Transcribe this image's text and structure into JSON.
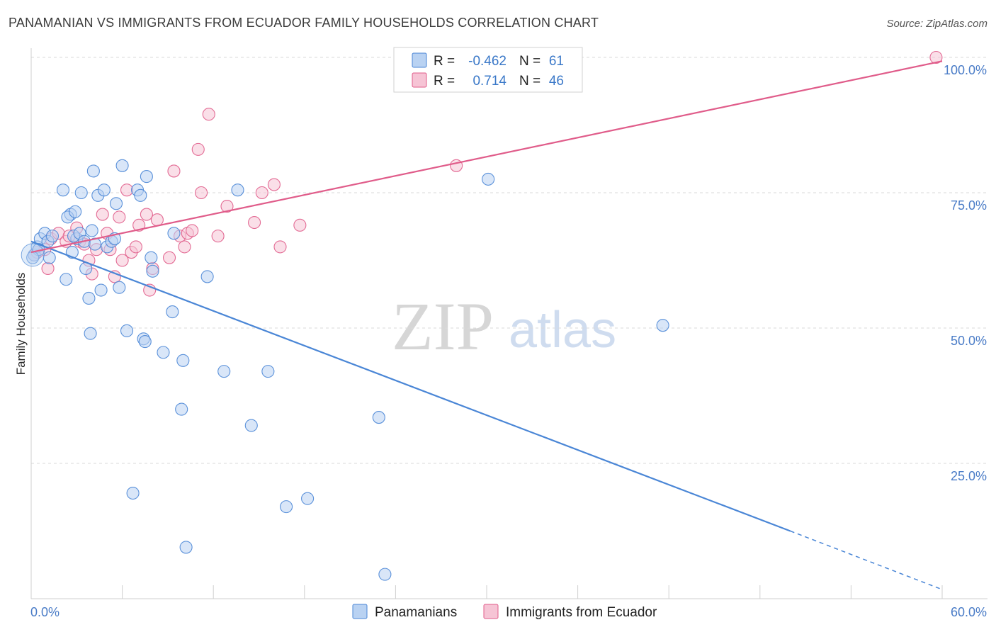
{
  "title": "PANAMANIAN VS IMMIGRANTS FROM ECUADOR FAMILY HOUSEHOLDS CORRELATION CHART",
  "source": "Source: ZipAtlas.com",
  "watermark": {
    "zip": "ZIP",
    "atlas": "atlas"
  },
  "colors": {
    "blue": "#4a86d6",
    "blue_fill": "#b9d2f2",
    "pink": "#e05c8a",
    "pink_fill": "#f6c4d5",
    "tick": "#4a7cc7",
    "grid": "#d9d9d9"
  },
  "legend": {
    "rows": [
      {
        "r_label": "R =",
        "r_value": "-0.462",
        "n_label": "N =",
        "n_value": "61"
      },
      {
        "r_label": "R =",
        "r_value": "0.714",
        "n_label": "N =",
        "n_value": "46"
      }
    ]
  },
  "bottom_legend": [
    "Panamanians",
    "Immigrants from Ecuador"
  ],
  "chart_data": {
    "type": "scatter",
    "title": "PANAMANIAN VS IMMIGRANTS FROM ECUADOR FAMILY HOUSEHOLDS CORRELATION CHART",
    "xlabel": "",
    "ylabel": "Family Households",
    "xlim": [
      0,
      60
    ],
    "ylim": [
      0,
      102
    ],
    "x_tick_labels": [
      "0.0%",
      "60.0%"
    ],
    "y_ticks": [
      25,
      50,
      75,
      100
    ],
    "y_tick_labels": [
      "25.0%",
      "50.0%",
      "75.0%",
      "100.0%"
    ],
    "grid": true,
    "legend_position": "top-center",
    "series": [
      {
        "name": "Panamanians",
        "color": "#4a86d6",
        "r": -0.462,
        "n": 61,
        "trend": {
          "x0": 0,
          "y0": 66.0,
          "x1": 50.0,
          "y1": 12.5,
          "dash_to_x": 60,
          "dash_to_y": 1.7
        },
        "points": [
          [
            0.2,
            63.5
          ],
          [
            0.4,
            65.0
          ],
          [
            0.6,
            66.5
          ],
          [
            0.9,
            67.5
          ],
          [
            1.1,
            66.0
          ],
          [
            1.4,
            67.0
          ],
          [
            1.2,
            63.0
          ],
          [
            0.5,
            64.5
          ],
          [
            2.1,
            75.5
          ],
          [
            2.6,
            71.0
          ],
          [
            2.4,
            70.5
          ],
          [
            2.7,
            64.0
          ],
          [
            3.0,
            66.5
          ],
          [
            2.3,
            59.0
          ],
          [
            2.8,
            67.0
          ],
          [
            2.9,
            71.5
          ],
          [
            3.2,
            67.5
          ],
          [
            3.3,
            75.0
          ],
          [
            3.5,
            66.0
          ],
          [
            3.8,
            55.5
          ],
          [
            3.9,
            49.0
          ],
          [
            3.6,
            61.0
          ],
          [
            4.0,
            68.0
          ],
          [
            4.1,
            79.0
          ],
          [
            4.2,
            65.5
          ],
          [
            4.4,
            74.5
          ],
          [
            4.6,
            57.0
          ],
          [
            4.8,
            75.5
          ],
          [
            5.0,
            65.0
          ],
          [
            5.3,
            66.0
          ],
          [
            5.5,
            66.5
          ],
          [
            5.6,
            73.0
          ],
          [
            5.8,
            57.5
          ],
          [
            6.0,
            80.0
          ],
          [
            6.3,
            49.5
          ],
          [
            6.7,
            19.5
          ],
          [
            7.0,
            75.5
          ],
          [
            7.2,
            74.5
          ],
          [
            7.4,
            48.0
          ],
          [
            7.5,
            47.5
          ],
          [
            7.6,
            78.0
          ],
          [
            7.9,
            63.0
          ],
          [
            8.0,
            60.5
          ],
          [
            8.7,
            45.5
          ],
          [
            9.3,
            53.0
          ],
          [
            9.4,
            67.5
          ],
          [
            9.9,
            35.0
          ],
          [
            10.0,
            44.0
          ],
          [
            10.2,
            9.5
          ],
          [
            11.6,
            59.5
          ],
          [
            12.7,
            42.0
          ],
          [
            13.6,
            75.5
          ],
          [
            14.5,
            32.0
          ],
          [
            15.6,
            42.0
          ],
          [
            16.8,
            17.0
          ],
          [
            18.2,
            18.5
          ],
          [
            22.9,
            33.5
          ],
          [
            23.3,
            4.5
          ],
          [
            30.1,
            77.5
          ],
          [
            41.6,
            50.5
          ],
          [
            0.1,
            63.0
          ]
        ]
      },
      {
        "name": "Immigrants from Ecuador",
        "color": "#e05c8a",
        "r": 0.714,
        "n": 46,
        "trend": {
          "x0": 0,
          "y0": 64.0,
          "x1": 60,
          "y1": 99.3
        },
        "points": [
          [
            0.2,
            63.5
          ],
          [
            0.4,
            64.0
          ],
          [
            0.9,
            64.5
          ],
          [
            1.1,
            61.0
          ],
          [
            1.3,
            66.5
          ],
          [
            1.8,
            67.5
          ],
          [
            2.3,
            66.0
          ],
          [
            2.5,
            67.0
          ],
          [
            3.0,
            68.5
          ],
          [
            3.2,
            66.0
          ],
          [
            3.5,
            65.5
          ],
          [
            3.8,
            62.5
          ],
          [
            4.0,
            60.0
          ],
          [
            4.3,
            64.5
          ],
          [
            4.7,
            71.0
          ],
          [
            5.0,
            67.5
          ],
          [
            5.2,
            64.5
          ],
          [
            5.5,
            59.5
          ],
          [
            5.8,
            70.5
          ],
          [
            6.0,
            62.5
          ],
          [
            6.3,
            75.5
          ],
          [
            6.6,
            64.0
          ],
          [
            6.9,
            65.0
          ],
          [
            7.1,
            69.0
          ],
          [
            7.6,
            71.0
          ],
          [
            7.8,
            57.0
          ],
          [
            8.0,
            61.0
          ],
          [
            8.3,
            70.0
          ],
          [
            9.1,
            63.0
          ],
          [
            9.4,
            79.0
          ],
          [
            9.8,
            67.0
          ],
          [
            10.1,
            65.0
          ],
          [
            10.3,
            67.5
          ],
          [
            10.6,
            68.0
          ],
          [
            11.0,
            83.0
          ],
          [
            11.2,
            75.0
          ],
          [
            11.7,
            89.5
          ],
          [
            12.3,
            67.0
          ],
          [
            12.9,
            72.5
          ],
          [
            14.7,
            69.5
          ],
          [
            15.2,
            75.0
          ],
          [
            16.0,
            76.5
          ],
          [
            16.4,
            65.0
          ],
          [
            17.7,
            69.0
          ],
          [
            28.0,
            80.0
          ],
          [
            59.6,
            100.0
          ]
        ]
      }
    ]
  }
}
